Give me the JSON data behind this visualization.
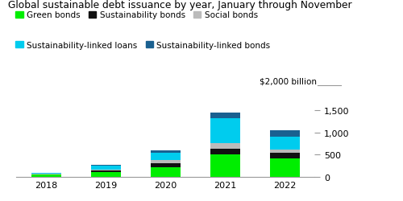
{
  "title": "Global sustainable debt issuance by year, January through November",
  "years": [
    "2018",
    "2019",
    "2020",
    "2021",
    "2022"
  ],
  "series": {
    "Green bonds": [
      50,
      115,
      210,
      510,
      420
    ],
    "Sustainability bonds": [
      8,
      35,
      90,
      130,
      120
    ],
    "Social bonds": [
      5,
      15,
      80,
      110,
      70
    ],
    "Sustainability-linked loans": [
      20,
      80,
      160,
      570,
      290
    ],
    "Sustainability-linked bonds": [
      8,
      25,
      55,
      130,
      150
    ]
  },
  "colors": {
    "Green bonds": "#00ee00",
    "Sustainability bonds": "#111111",
    "Social bonds": "#bbbbbb",
    "Sustainability-linked loans": "#00ccee",
    "Sustainability-linked bonds": "#1a6090"
  },
  "ylim": [
    0,
    2000
  ],
  "yticks": [
    0,
    500,
    1000,
    1500
  ],
  "ytick_labels": [
    "0",
    "500",
    "1,000",
    "1,500"
  ],
  "legend_order": [
    "Green bonds",
    "Sustainability bonds",
    "Social bonds",
    "Sustainability-linked loans",
    "Sustainability-linked bonds"
  ],
  "background_color": "#ffffff",
  "bar_width": 0.5
}
